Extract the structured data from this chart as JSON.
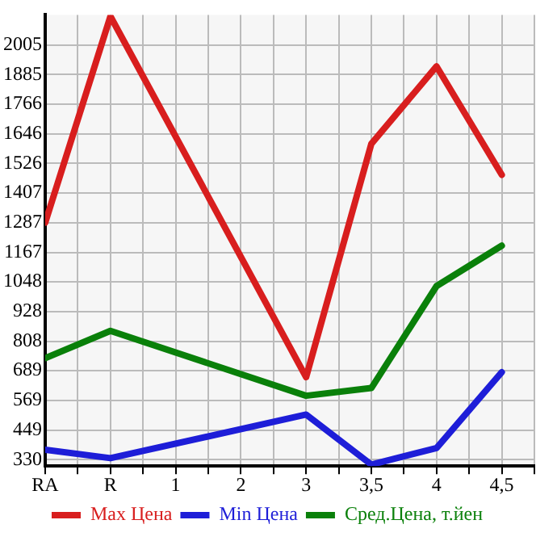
{
  "chart_data": {
    "type": "line",
    "categories": [
      "RA",
      "R",
      "1",
      "2",
      "3",
      "3,5",
      "4",
      "4,5"
    ],
    "series": [
      {
        "name": "Max Цена",
        "color": "#d81e1e",
        "values": [
          1287,
          2120,
          null,
          null,
          663,
          1605,
          1918,
          1480
        ]
      },
      {
        "name": "Min Цена",
        "color": "#1e1ed8",
        "values": [
          370,
          336,
          null,
          null,
          512,
          310,
          377,
          683
        ]
      },
      {
        "name": "Сред.Цена, т.йен",
        "color": "#0a800a",
        "values": [
          740,
          850,
          null,
          null,
          588,
          619,
          1031,
          1194
        ]
      }
    ],
    "ylim": [
      304,
      2126
    ],
    "yticks": [
      330,
      449,
      569,
      689,
      808,
      928,
      1048,
      1167,
      1287,
      1407,
      1526,
      1646,
      1766,
      1885,
      2005
    ],
    "grid": true,
    "legend": "bottom",
    "marker": "none",
    "line_style": "solid"
  }
}
